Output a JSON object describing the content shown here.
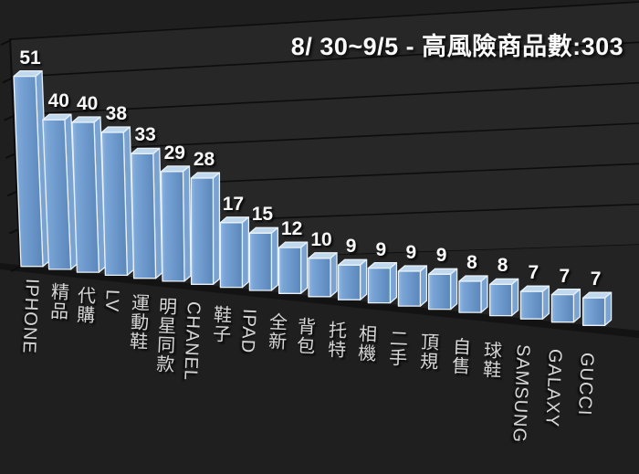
{
  "chart_data": {
    "type": "bar",
    "variant": "3d-column-perspective",
    "title": "8/ 30~9/5 - 高風險商品數:303",
    "categories": [
      "IPHONE",
      "精品",
      "代購",
      "LV",
      "運動鞋",
      "明星同款",
      "CHANEL",
      "鞋子",
      "IPAD",
      "全新",
      "背包",
      "托特",
      "相機",
      "二手",
      "頂規",
      "自售",
      "球鞋",
      "SAMSUNG",
      "GALAXY",
      "GUCCI"
    ],
    "values": [
      51,
      40,
      40,
      38,
      33,
      29,
      28,
      17,
      15,
      12,
      10,
      9,
      9,
      9,
      9,
      8,
      8,
      7,
      7,
      7
    ],
    "ylim": [
      0,
      60
    ],
    "y_gridline_interval": 10,
    "y_axis_tick_labels": "none",
    "grid": true,
    "legend": "none",
    "value_labels": "above-bars",
    "category_labels": "vertical-below-bars"
  },
  "colors": {
    "background": "#1f1f1f",
    "wall": "#272727",
    "floor": "#232323",
    "gridline": "#0d0d0d",
    "axis": "#0d0d0d",
    "floor_edge": "#131313",
    "bar_front_light": "#93b9e2",
    "bar_front": "#6b97cb",
    "bar_front_dark": "#5a86ba",
    "bar_top": "#c0d8ee",
    "bar_side": "#7aa3d2",
    "bar_outline": "#e9f1f8",
    "title_text": "#fafafa",
    "value_label_text": "#f8f8f8",
    "category_label_text": "#d6d6d6"
  }
}
